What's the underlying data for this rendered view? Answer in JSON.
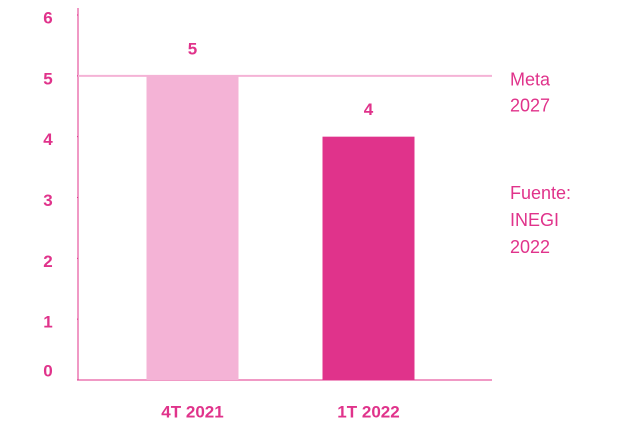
{
  "chart_data": {
    "type": "bar",
    "categories": [
      "4T 2021",
      "1T 2022"
    ],
    "values": [
      5,
      4
    ],
    "colors": [
      "#f4b3d6",
      "#e0338b"
    ],
    "ylim": [
      0,
      6
    ],
    "yticks": [
      0,
      1,
      2,
      3,
      4,
      5,
      6
    ],
    "target": {
      "value": 5,
      "label": [
        "Meta",
        "2027"
      ],
      "color": "#f4b3d6"
    },
    "annotation": [
      "Fuente:",
      "INEGI",
      "2022"
    ]
  }
}
